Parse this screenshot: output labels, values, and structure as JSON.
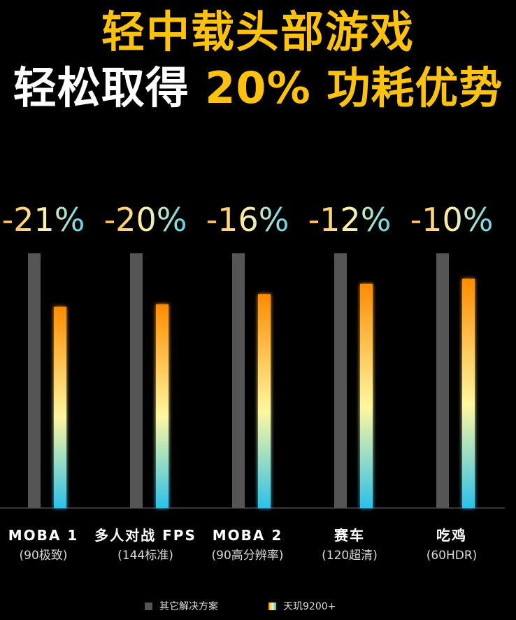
{
  "title": {
    "line1": "轻中载头部游戏",
    "line2_prefix": "轻松取得 ",
    "line2_highlight": "20% 功耗优势"
  },
  "colors": {
    "accent_yellow": "#ffc20e",
    "baseline_bar": "#555555",
    "gradient_top": "#ff8c00",
    "gradient_mid": "#fff7a0",
    "gradient_bottom": "#2cc0ea",
    "background": "#000000"
  },
  "chart_data": {
    "type": "bar",
    "categories": [
      {
        "name": "MOBA 1",
        "sub": "(90极致)"
      },
      {
        "name": "多人对战 FPS",
        "sub": "(144标准)"
      },
      {
        "name": "MOBA 2",
        "sub": "(90高分辨率)"
      },
      {
        "name": "赛车",
        "sub": "(120超清)"
      },
      {
        "name": "吃鸡",
        "sub": "(60HDR)"
      }
    ],
    "series": [
      {
        "name": "其它解决方案",
        "values": [
          1,
          1,
          1,
          1,
          1
        ],
        "color": "#555555"
      },
      {
        "name": "天玑9200+",
        "values": [
          0.79,
          0.8,
          0.84,
          0.88,
          0.9
        ],
        "color": "gradient"
      }
    ],
    "labels": [
      "-21%",
      "-20%",
      "-16%",
      "-12%",
      "-10%"
    ],
    "ylim": [
      0,
      1
    ],
    "grid": false,
    "legend_position": "bottom-center"
  }
}
